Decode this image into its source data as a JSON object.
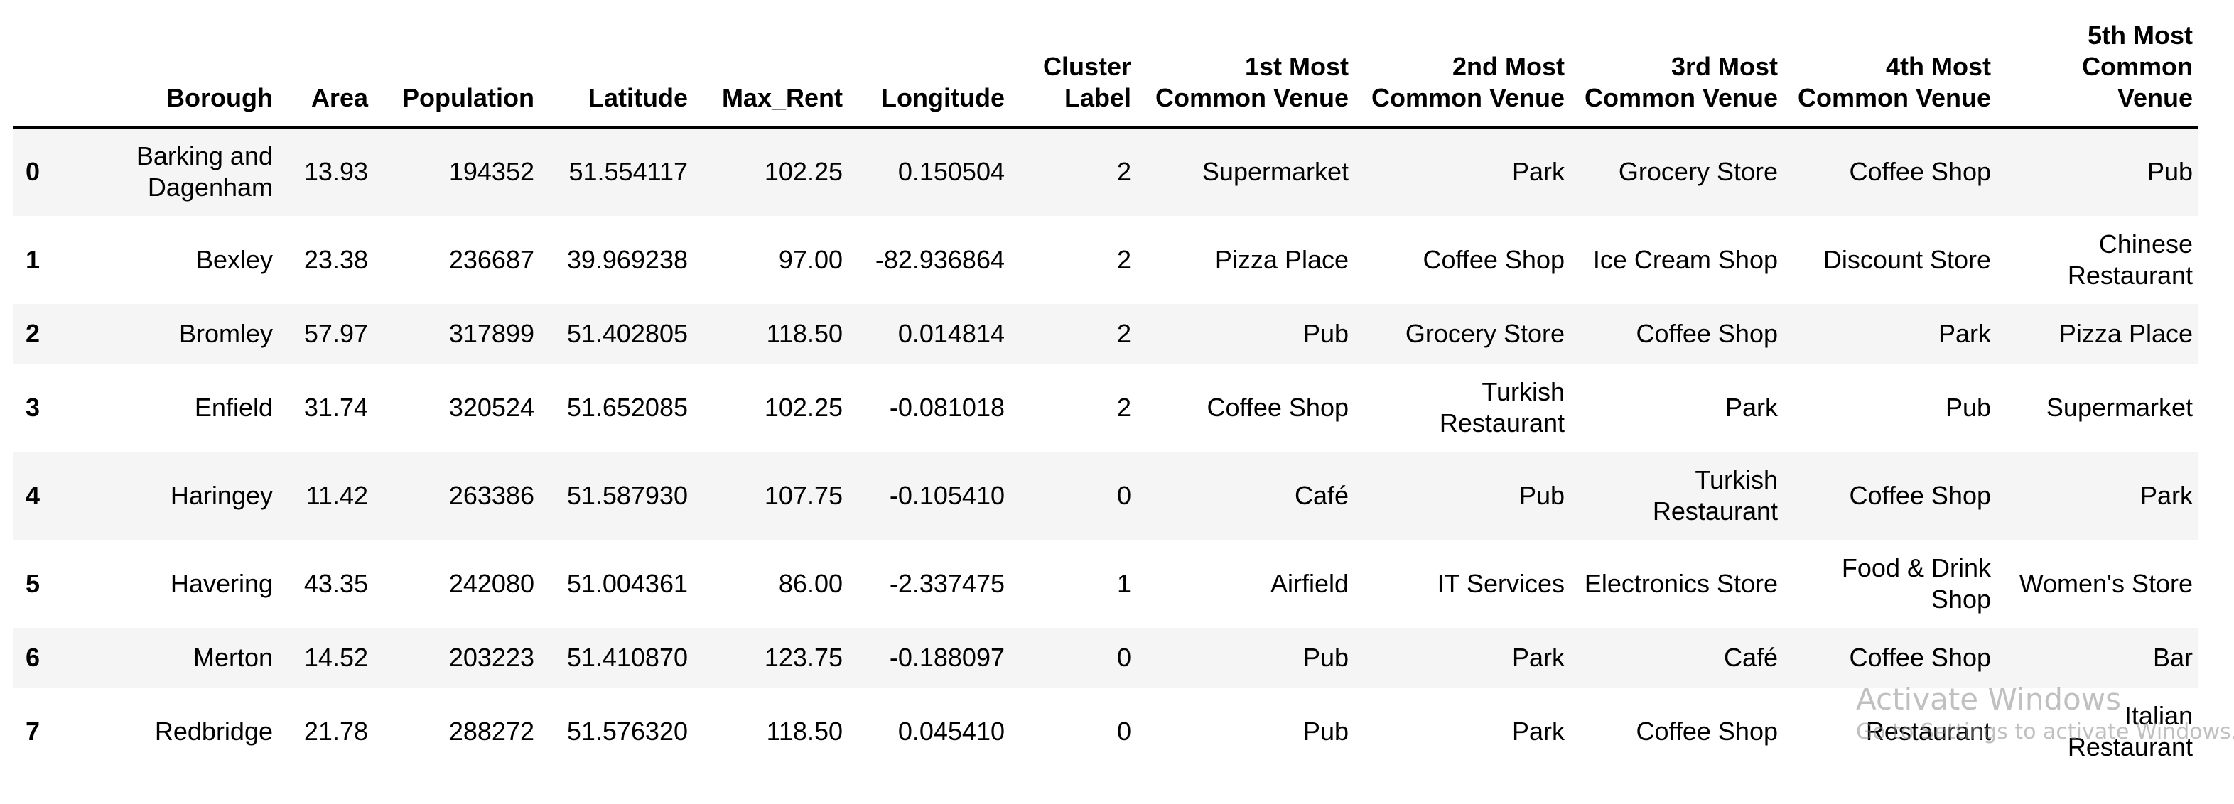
{
  "table": {
    "columns": [
      "",
      "Borough",
      "Area",
      "Population",
      "Latitude",
      "Max_Rent",
      "Longitude",
      "Cluster Label",
      "1st Most Common Venue",
      "2nd Most Common Venue",
      "3rd Most Common Venue",
      "4th Most Common Venue",
      "5th Most Common Venue"
    ],
    "rows": [
      [
        "0",
        "Barking and Dagenham",
        "13.93",
        "194352",
        "51.554117",
        "102.25",
        "0.150504",
        "2",
        "Supermarket",
        "Park",
        "Grocery Store",
        "Coffee Shop",
        "Pub"
      ],
      [
        "1",
        "Bexley",
        "23.38",
        "236687",
        "39.969238",
        "97.00",
        "-82.936864",
        "2",
        "Pizza Place",
        "Coffee Shop",
        "Ice Cream Shop",
        "Discount Store",
        "Chinese Restaurant"
      ],
      [
        "2",
        "Bromley",
        "57.97",
        "317899",
        "51.402805",
        "118.50",
        "0.014814",
        "2",
        "Pub",
        "Grocery Store",
        "Coffee Shop",
        "Park",
        "Pizza Place"
      ],
      [
        "3",
        "Enfield",
        "31.74",
        "320524",
        "51.652085",
        "102.25",
        "-0.081018",
        "2",
        "Coffee Shop",
        "Turkish Restaurant",
        "Park",
        "Pub",
        "Supermarket"
      ],
      [
        "4",
        "Haringey",
        "11.42",
        "263386",
        "51.587930",
        "107.75",
        "-0.105410",
        "0",
        "Café",
        "Pub",
        "Turkish Restaurant",
        "Coffee Shop",
        "Park"
      ],
      [
        "5",
        "Havering",
        "43.35",
        "242080",
        "51.004361",
        "86.00",
        "-2.337475",
        "1",
        "Airfield",
        "IT Services",
        "Electronics Store",
        "Food & Drink Shop",
        "Women's Store"
      ],
      [
        "6",
        "Merton",
        "14.52",
        "203223",
        "51.410870",
        "123.75",
        "-0.188097",
        "0",
        "Pub",
        "Park",
        "Café",
        "Coffee Shop",
        "Bar"
      ],
      [
        "7",
        "Redbridge",
        "21.78",
        "288272",
        "51.576320",
        "118.50",
        "0.045410",
        "0",
        "Pub",
        "Park",
        "Coffee Shop",
        "Restaurant",
        "Italian Restaurant"
      ]
    ]
  },
  "watermark": {
    "title": "Activate Windows",
    "subtitle": "Go to Settings to activate Windows."
  }
}
